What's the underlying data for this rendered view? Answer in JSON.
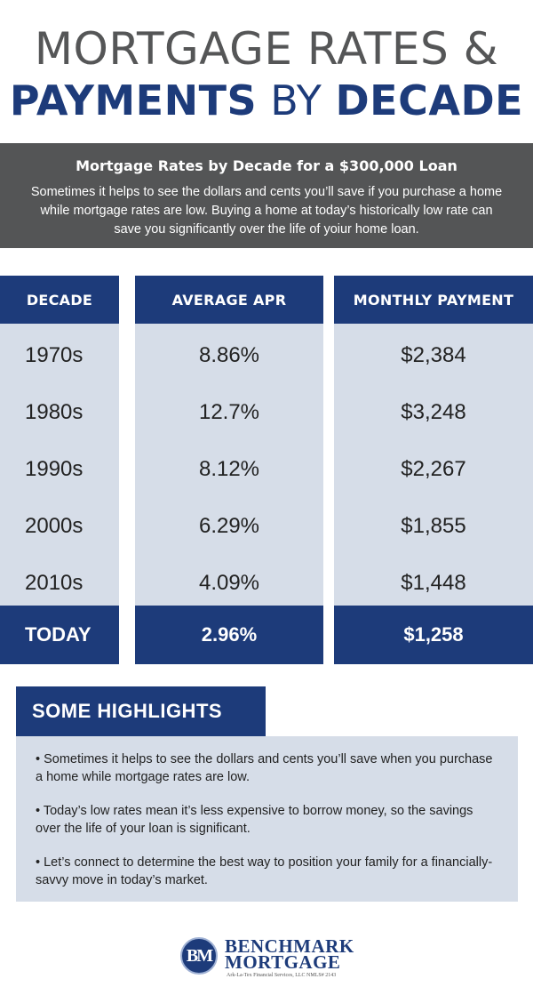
{
  "title": {
    "line1": "MORTGAGE RATES &",
    "line2_bold1": "PAYMENTS",
    "line2_normal": "BY",
    "line2_bold2": "DECADE"
  },
  "intro": {
    "heading": "Mortgage Rates by Decade for a $300,000 Loan",
    "body": "Sometimes it helps to see the dollars and cents you’ll save if you purchase a home while mortgage rates are low. Buying a home at today’s historically low rate can save you significantly over the life of yoiur home loan."
  },
  "table": {
    "headers": [
      "DECADE",
      "AVERAGE APR",
      "MONTHLY PAYMENT"
    ],
    "rows": [
      {
        "decade": "1970s",
        "apr": "8.86%",
        "payment": "$2,384"
      },
      {
        "decade": "1980s",
        "apr": "12.7%",
        "payment": "$3,248"
      },
      {
        "decade": "1990s",
        "apr": "8.12%",
        "payment": "$2,267"
      },
      {
        "decade": "2000s",
        "apr": "6.29%",
        "payment": "$1,855"
      },
      {
        "decade": "2010s",
        "apr": "4.09%",
        "payment": "$1,448"
      }
    ],
    "today": {
      "decade": "TODAY",
      "apr": "2.96%",
      "payment": "$1,258"
    }
  },
  "highlights": {
    "title": "SOME HIGHLIGHTS",
    "items": [
      "• Sometimes it helps to see the dollars and cents you’ll save when you purchase a home while mortgage rates are low.",
      "• Today’s low rates mean it’s less expensive to borrow money, so the savings over the life of your loan is significant.",
      "• Let’s connect to determine the best way to position your family for a financially-savvy move in today’s market."
    ]
  },
  "logo": {
    "badge": "BM",
    "name1": "BENCHMARK",
    "name2": "MORTGAGE",
    "sub": "Ark-La-Tex Financial Services, LLC NMLS# 2143"
  },
  "colors": {
    "navy": "#1d3b7a",
    "gray_banner": "#545556",
    "light_blue": "#d6dde8"
  }
}
